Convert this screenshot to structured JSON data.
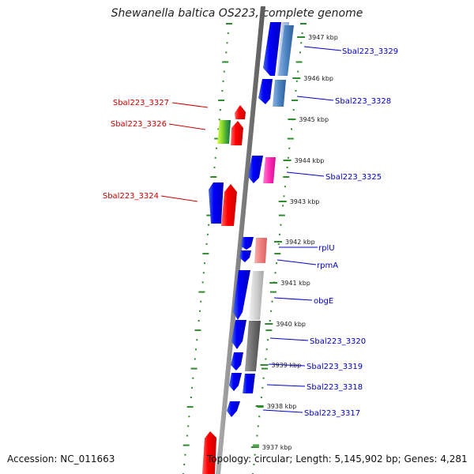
{
  "title": "Shewanella baltica OS223, complete genome",
  "footer": {
    "accession_label": "Accession:",
    "accession": "NC_011663",
    "topology_label": "Topology:",
    "topology": "circular",
    "length_label": "Length:",
    "length": "5,145,902 bp",
    "genes_label": "Genes:",
    "genes": "4,281"
  },
  "colors": {
    "backbone": "#808080",
    "ring_dots": "#2e8b2e",
    "strand_forward": "#0000ff",
    "label_forward": "#0000cc",
    "label_reverse": "#cc0000",
    "tick_text": "#222222"
  },
  "ticks": [
    "3947 kbp",
    "3946 kbp",
    "3945 kbp",
    "3944 kbp",
    "3943 kbp",
    "3942 kbp",
    "3941 kbp",
    "3940 kbp",
    "3939 kbp",
    "3938 kbp",
    "3937 kbp"
  ],
  "gene_labels_right": [
    "Sbal223_3329",
    "Sbal223_3328",
    "Sbal223_3325",
    "rplU",
    "rpmA",
    "obgE",
    "Sbal223_3320",
    "Sbal223_3319",
    "Sbal223_3318",
    "Sbal223_3317"
  ],
  "gene_labels_left": [
    "Sbal223_3327",
    "Sbal223_3326",
    "Sbal223_3324"
  ]
}
